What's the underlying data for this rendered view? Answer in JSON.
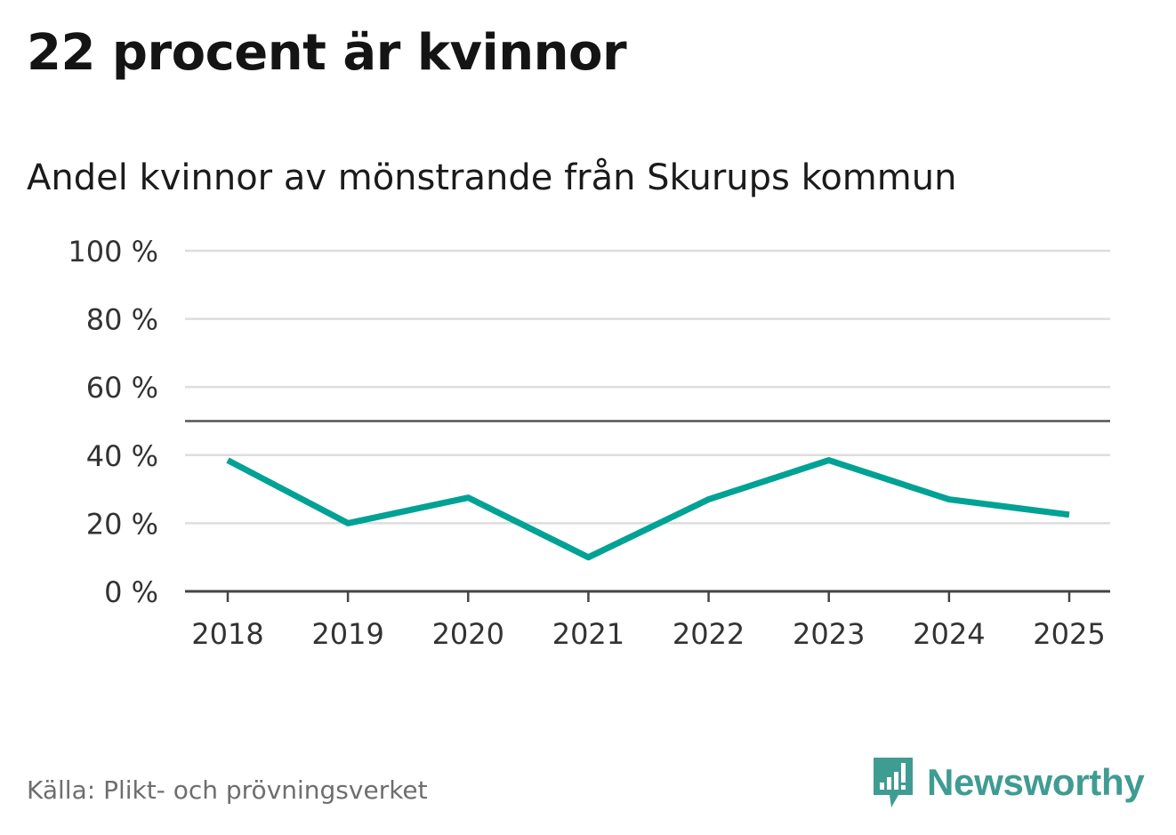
{
  "header": {
    "title": "22 procent är kvinnor",
    "subtitle": "Andel kvinnor av mönstrande från Skurups kommun"
  },
  "footer": {
    "source": "Källa: Plikt- och prövningsverket",
    "brand": "Newsworthy",
    "brand_icon": "newsworthy-logo-icon"
  },
  "colors": {
    "line": "#00a295",
    "grid": "#dddddd",
    "reference_line": "#555555",
    "axis": "#444444",
    "brand": "#3f9c93"
  },
  "chart_data": {
    "type": "line",
    "title": "Andel kvinnor av mönstrande från Skurups kommun",
    "categories": [
      "2018",
      "2019",
      "2020",
      "2021",
      "2022",
      "2023",
      "2024",
      "2025"
    ],
    "series": [
      {
        "values": [
          38.5,
          20,
          27.5,
          10,
          27,
          38.5,
          27,
          22.5
        ]
      }
    ],
    "y_ticks": [
      "0 %",
      "20 %",
      "40 %",
      "60 %",
      "80 %",
      "100 %"
    ],
    "y_tick_values": [
      0,
      20,
      40,
      60,
      80,
      100
    ],
    "ylim": [
      0,
      100
    ],
    "reference_line": 50,
    "grid": true,
    "xlabel": "",
    "ylabel": ""
  }
}
